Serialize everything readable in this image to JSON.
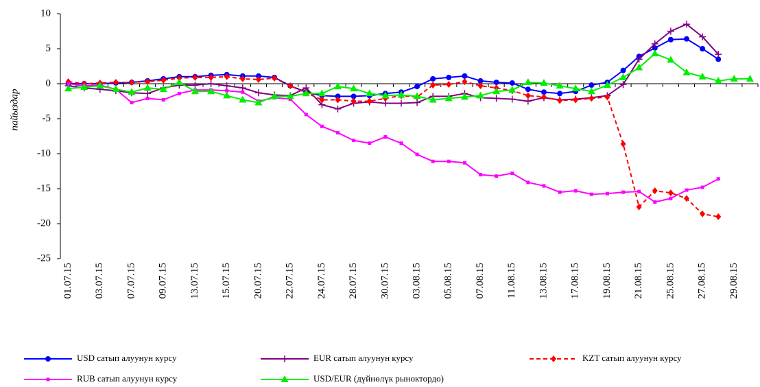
{
  "chart_data": {
    "type": "line",
    "y_label": "пайыздар",
    "categories": [
      "01.07.15",
      null,
      "03.07.15",
      null,
      "07.07.15",
      null,
      "09.07.15",
      null,
      "13.07.15",
      null,
      "15.07.15",
      null,
      "20.07.15",
      null,
      "22.07.15",
      null,
      "24.07.15",
      null,
      "28.07.15",
      null,
      "30.07.15",
      null,
      "03.08.15",
      null,
      "05.08.15",
      null,
      "07.08.15",
      null,
      "11.08.15",
      null,
      "13.08.15",
      null,
      "17.08.15",
      null,
      "19.08.15",
      null,
      "21.08.15",
      null,
      "25.08.15",
      null,
      "27.08.15",
      null,
      "29.08.15",
      null
    ],
    "ylim": [
      -25,
      10
    ],
    "yticks": [
      10,
      5,
      0,
      -5,
      -10,
      -15,
      -20,
      -25
    ],
    "grid": false,
    "legend": "bottom",
    "series": [
      {
        "name": "USD сатып алуунун курсу",
        "color": "#0000ff",
        "marker": "circle",
        "dash": false,
        "values": [
          0.0,
          0.0,
          0.0,
          0.1,
          0.2,
          0.4,
          0.7,
          1.0,
          1.0,
          1.2,
          1.3,
          1.1,
          1.1,
          0.9,
          -0.3,
          -1.2,
          -1.7,
          -1.8,
          -1.8,
          -1.7,
          -1.4,
          -1.2,
          -0.4,
          0.7,
          0.9,
          1.1,
          0.4,
          0.2,
          0.1,
          -0.8,
          -1.2,
          -1.4,
          -1.1,
          -0.2,
          0.2,
          1.9,
          3.9,
          5.1,
          6.3,
          6.4,
          5.0,
          3.5,
          null,
          null
        ]
      },
      {
        "name": "EUR сатып алуунун курсу",
        "color": "#800080",
        "marker": "plus",
        "dash": false,
        "values": [
          -0.3,
          -0.6,
          -0.8,
          -1.0,
          -1.3,
          -1.4,
          -0.6,
          -0.2,
          -0.2,
          0.0,
          -0.3,
          -0.6,
          -1.3,
          -1.6,
          -1.7,
          -0.6,
          -3.0,
          -3.6,
          -2.8,
          -2.6,
          -2.8,
          -2.8,
          -2.7,
          -1.8,
          -1.8,
          -1.4,
          -2.0,
          -2.1,
          -2.2,
          -2.5,
          -2.0,
          -2.3,
          -2.2,
          -2.0,
          -1.7,
          -0.1,
          3.5,
          5.7,
          7.5,
          8.5,
          6.7,
          4.2,
          null,
          null
        ]
      },
      {
        "name": "KZT сатып алуунун курсу",
        "color": "#ff0000",
        "marker": "diamond",
        "dash": true,
        "values": [
          0.3,
          0.0,
          0.1,
          0.2,
          0.2,
          0.3,
          0.5,
          0.8,
          0.9,
          0.9,
          1.0,
          0.7,
          0.6,
          0.8,
          -0.3,
          -1.3,
          -2.3,
          -2.3,
          -2.5,
          -2.5,
          -2.1,
          -1.7,
          -1.9,
          -0.2,
          -0.1,
          0.3,
          -0.3,
          -0.6,
          -1.0,
          -1.7,
          -1.9,
          -2.4,
          -2.3,
          -2.1,
          -1.9,
          -8.6,
          -17.6,
          -15.3,
          -15.6,
          -16.4,
          -18.6,
          -19.0,
          null,
          null
        ]
      },
      {
        "name": "RUB сатып алуунун курсу",
        "color": "#ff00ff",
        "marker": "square",
        "dash": false,
        "values": [
          0.0,
          -0.3,
          -0.2,
          -0.8,
          -2.7,
          -2.1,
          -2.3,
          -1.4,
          -0.9,
          -0.9,
          -1.0,
          -1.2,
          -2.5,
          -2.0,
          -2.2,
          -4.4,
          -6.1,
          -7.0,
          -8.1,
          -8.5,
          -7.6,
          -8.5,
          -10.1,
          -11.1,
          -11.1,
          -11.3,
          -13.0,
          -13.2,
          -12.8,
          -14.1,
          -14.6,
          -15.5,
          -15.3,
          -15.8,
          -15.7,
          -15.5,
          -15.4,
          -16.9,
          -16.4,
          -15.2,
          -14.8,
          -13.6,
          null,
          null
        ]
      },
      {
        "name": "USD/EUR (дүйнөлүк рыноктордо)",
        "color": "#00ee00",
        "marker": "triangle",
        "dash": false,
        "values": [
          -0.7,
          -0.5,
          -0.3,
          -0.8,
          -1.2,
          -0.6,
          -0.8,
          0.2,
          -1.1,
          -1.1,
          -1.7,
          -2.3,
          -2.7,
          -1.8,
          -1.8,
          -1.4,
          -1.4,
          -0.4,
          -0.7,
          -1.4,
          -1.7,
          -1.6,
          -1.8,
          -2.3,
          -2.1,
          -1.9,
          -1.7,
          -1.1,
          -0.9,
          0.2,
          0.1,
          -0.3,
          -0.7,
          -1.1,
          -0.2,
          0.9,
          2.3,
          4.3,
          3.4,
          1.6,
          1.0,
          0.4,
          0.7,
          0.7
        ]
      }
    ]
  }
}
